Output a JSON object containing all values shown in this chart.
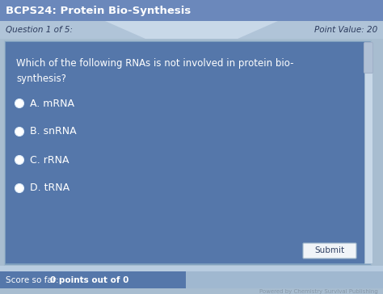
{
  "title": "BCPS24: Protein Bio-Synthesis",
  "question_label": "Question 1 of 5:",
  "point_value": "Point Value: 20",
  "question_text": "Which of the following RNAs is not involved in protein bio-\nsynthesis?",
  "options": [
    "A. mRNA",
    "B. snRNA",
    "C. rRNA",
    "D. tRNA"
  ],
  "score_text": "Score so far: ",
  "score_bold": "0 points out of 0",
  "submit_text": "Submit",
  "powered_text": "Powered by Chemistry Survival Publishing",
  "title_bg": "#6B88BB",
  "title_text_color": "#FFFFFF",
  "header_bg": "#B0C4D8",
  "header_text_color": "#2B3A5C",
  "trap_color": "#C8D8E8",
  "outer_bg": "#A8BDD0",
  "content_bg": "#5577AA",
  "content_border": "#7899BB",
  "inner_text_color": "#FFFFFF",
  "bullet_fill": "#FFFFFF",
  "bullet_edge": "#DDECFA",
  "scroll_bg": "#C8D8E8",
  "scroll_thumb": "#B0C0D5",
  "scroll_thumb_edge": "#A0B0C8",
  "footer_left_bg": "#5577AA",
  "footer_right_bg": "#A0B8D0",
  "footer_strip_bg": "#B8CCE0",
  "footer_text_color": "#FFFFFF",
  "powered_text_color": "#8899AA",
  "submit_bg": "#F0F4F8",
  "submit_border": "#A0B8CC",
  "submit_text_color": "#334466",
  "fig_bg": "#A8BDD0"
}
